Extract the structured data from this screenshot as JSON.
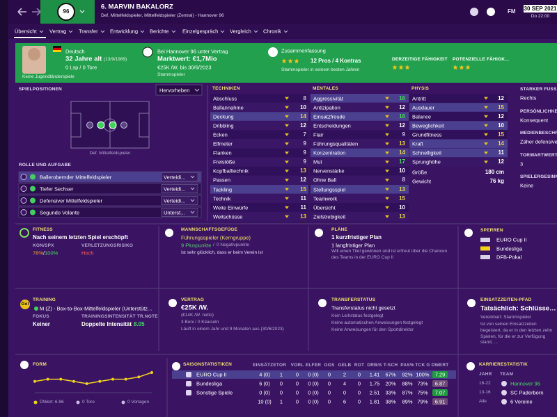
{
  "header": {
    "club_badge": "96",
    "name": "6. MARVIN BAKALORZ",
    "positions": "Def. Mittelfeldspieler, Mittelfeldspieler (Zentral) - Hannover 96",
    "fm": "FM",
    "date": "30 SEP 2021",
    "time": "Do 22:00"
  },
  "tabs": [
    "Übersicht",
    "Vertrag",
    "Transfer",
    "Entwicklung",
    "Berichte",
    "Einzelgespräch",
    "Vergleich",
    "Chronik"
  ],
  "profile": {
    "nationality": "Deutsch",
    "age": "32 Jahre alt",
    "birthdate": "(13/9/1989)",
    "caps": "0 Lsp / 0 Tore",
    "youth_caps": "Keine Jugendländerspiele",
    "contract_status": "Bei Hannover 96 unter Vertrag",
    "value": "Marktwert: €1,7Mio",
    "wage": "€25K /W. bis 30/6/2023",
    "squad_status": "Stammspieler",
    "summary_title": "Zusammenfassung",
    "summary_stars": 3,
    "pros_cons": "12 Pros / 4 Kontras",
    "summary": "Stammspieler in seinem besten Jahren",
    "current_ability_label": "DERZEITIGE FÄHIGKEIT",
    "current_ability_stars": 3,
    "potential_ability_label": "POTENZIELLE FÄHIGK...",
    "potential_ability_stars": 3
  },
  "positions": {
    "title": "SPIELPOSITIONEN",
    "highlight_button": "Hervorheben",
    "position": "Def. Mittelfeldspieler",
    "roles_title": "ROLLE UND AUFGABE",
    "roles": [
      {
        "name": "Ballerobernder Mittelfeldspieler",
        "duty": "Verteidi..."
      },
      {
        "name": "Tiefer Sechser",
        "duty": "Verteidi..."
      },
      {
        "name": "Defensiver Mittelfeldspieler",
        "duty": "Verteidi..."
      },
      {
        "name": "Segundo Volante",
        "duty": "Unterst..."
      }
    ]
  },
  "attributes": {
    "technical": {
      "title": "TECHNIKEN",
      "items": [
        {
          "name": "Abschluss",
          "value": 8
        },
        {
          "name": "Ballannahme",
          "value": 10
        },
        {
          "name": "Deckung",
          "value": 14,
          "key": true
        },
        {
          "name": "Dribbling",
          "value": 12
        },
        {
          "name": "Ecken",
          "value": 7
        },
        {
          "name": "Elfmeter",
          "value": 9
        },
        {
          "name": "Flanken",
          "value": 9
        },
        {
          "name": "Freistöße",
          "value": 9
        },
        {
          "name": "Kopfballtechnik",
          "value": 13
        },
        {
          "name": "Passen",
          "value": 12
        },
        {
          "name": "Tackling",
          "value": 15,
          "key": true
        },
        {
          "name": "Technik",
          "value": 11
        },
        {
          "name": "Weite Einwürfe",
          "value": 11
        },
        {
          "name": "Weitschüsse",
          "value": 13
        }
      ]
    },
    "mental": {
      "title": "MENTALES",
      "items": [
        {
          "name": "Aggressivität",
          "value": 16,
          "key": true
        },
        {
          "name": "Antizipation",
          "value": 12
        },
        {
          "name": "Einsatzfreude",
          "value": 16,
          "key": true
        },
        {
          "name": "Entscheidungen",
          "value": 12
        },
        {
          "name": "Flair",
          "value": 9
        },
        {
          "name": "Führungsqualitäten",
          "value": 13
        },
        {
          "name": "Konzentration",
          "value": 14,
          "key": true
        },
        {
          "name": "Mut",
          "value": 17
        },
        {
          "name": "Nervenstärke",
          "value": 10
        },
        {
          "name": "Ohne Ball",
          "value": 8
        },
        {
          "name": "Stellungsspiel",
          "value": 13,
          "key": true
        },
        {
          "name": "Teamwork",
          "value": 15
        },
        {
          "name": "Übersicht",
          "value": 10
        },
        {
          "name": "Zielstrebigkeit",
          "value": 13
        }
      ]
    },
    "physical": {
      "title": "PHYSIS",
      "items": [
        {
          "name": "Antritt",
          "value": 12
        },
        {
          "name": "Ausdauer",
          "value": 15,
          "key": true
        },
        {
          "name": "Balance",
          "value": 12
        },
        {
          "name": "Beweglichkeit",
          "value": 10,
          "key": true
        },
        {
          "name": "Grundfitness",
          "value": 15
        },
        {
          "name": "Kraft",
          "value": 14,
          "key": true
        },
        {
          "name": "Schnelligkeit",
          "value": 11,
          "key": true
        },
        {
          "name": "Sprunghöhe",
          "value": 12
        }
      ],
      "extra": [
        {
          "name": "Größe",
          "value": "180 cm"
        },
        {
          "name": "Gewicht",
          "value": "76 kg"
        }
      ]
    }
  },
  "info": [
    {
      "label": "STARKER FUSS",
      "value": "Rechts"
    },
    {
      "label": "PERSÖNLICHKEI",
      "value": "Konsequent"
    },
    {
      "label": "MEDIENBESCHRE",
      "value": "Zäher defensive"
    },
    {
      "label": "TORWARTWERTE",
      "value": "3"
    },
    {
      "label": "SPIELERGESINN",
      "value": "Keine"
    }
  ],
  "fitness": {
    "title": "FITNESS",
    "status": "Nach seinem letzten Spiel erschöpft",
    "kon_spx_label": "KON/SPX",
    "injury_label": "VERLETZUNGSRISIKO",
    "condition": "78%",
    "separator": "/",
    "sharpness": "100%",
    "injury_risk": "Hoch"
  },
  "team_dynamics": {
    "title": "MANNSCHAFTSGEFÜGE",
    "role": "Führungsspieler (Kerngruppe)",
    "positive": "9 Pluspunkte",
    "separator": "/",
    "negative": "0 Negativpunkte",
    "note": "Ist sehr glücklich, dass er beim Verein ist"
  },
  "plans": {
    "title": "PLÄNE",
    "short_term": "1 kurzfristiger Plan",
    "long_term": "1 langfristiger Plan",
    "note": "Will einen Titel gewinnen und ist erfreut über die Chancen des Teams in der EURO Cup II"
  },
  "bans": {
    "title": "SPERREN",
    "items": [
      "EURO Cup II",
      "Bundesliga",
      "DFB-Pokal"
    ]
  },
  "training": {
    "title": "TRAINING",
    "badge": "Gel",
    "role": "M (Z) - Box-to-Box-Mittelfeldspieler (Unterstütz...",
    "focus_label": "FOKUS",
    "intensity_label": "TRAININGSINTENSITÄT TR.NOTE",
    "focus": "Keiner",
    "intensity": "Doppelte Intensität",
    "rating": "8.05"
  },
  "contract": {
    "title": "VERTRAG",
    "wage": "€25K /W.",
    "net": "(€14K /W. netto)",
    "bonuses": "3 Boni / 0 Klauseln",
    "expiry": "Läuft in einem Jahr und 9 Monaten aus (30/6/2023)"
  },
  "transfer": {
    "title": "TRANSFERSTATUS",
    "status": "Transferstatus nicht gesetzt",
    "items": [
      "Kein Leihstatus festgelegt",
      "Keine automatischen Anweisungen festgelegt",
      "Keine Anweisungen für den Sportdirektor"
    ]
  },
  "playing_time": {
    "title": "EINSATZZEITEN-PFAD",
    "actual": "Tatsächlich: Schlüsselspieler",
    "agreed": "Vereinbart: Stammspieler",
    "note": "Ist von seinen Einsatzzeiten begeistert, da er in den letzten zehn Spielen, für die er zur Verfügung stand, ..."
  },
  "chart_data": {
    "type": "line",
    "title": "FORM",
    "values": [
      6.9,
      7.0,
      7.0,
      6.9,
      6.8,
      6.9,
      7.0,
      7.0,
      7.1,
      7.3
    ],
    "color": "#f2d31b"
  },
  "form": {
    "rating": "DWert: 6.96",
    "goals": "0 Tore",
    "assists": "0 Vorlagen"
  },
  "season_stats": {
    "title": "SAISONSTATISTIKEN",
    "columns": [
      "EINSÄTZE",
      "TOR",
      "VORL",
      "ELFER",
      "GGS",
      "GELB",
      "ROT",
      "DRB/S",
      "T-SCH",
      "PAS%",
      "TCK G",
      "DWERT"
    ],
    "rows": [
      {
        "competition": "EURO Cup II",
        "cells": [
          "4 (0)",
          "1",
          "0",
          "0 (0)",
          "0",
          "2",
          "0",
          "1.41",
          "67%",
          "92%",
          "100%",
          "7.29"
        ]
      },
      {
        "competition": "Bundesliga",
        "cells": [
          "6 (0)",
          "0",
          "0",
          "0 (0)",
          "0",
          "4",
          "0",
          "1.75",
          "20%",
          "88%",
          "73%",
          "6.87"
        ]
      },
      {
        "competition": "Sonstige Spiele",
        "cells": [
          "0 (0)",
          "0",
          "0",
          "0 (0)",
          "0",
          "0",
          "0",
          "2.51",
          "33%",
          "87%",
          "75%",
          "7.07"
        ]
      }
    ],
    "total": [
      "10 (0)",
      "1",
      "0",
      "0 (0)",
      "0",
      "6",
      "0",
      "1.81",
      "38%",
      "89%",
      "79%",
      "6.91"
    ]
  },
  "career": {
    "title": "KARRIERESTATISTIK",
    "columns": [
      "JAHR",
      "TEAM"
    ],
    "rows": [
      [
        "16-22",
        "Hannover 96"
      ],
      [
        "13-16",
        "SC Paderborn"
      ],
      [
        "Alle",
        "6 Vereine"
      ]
    ]
  }
}
